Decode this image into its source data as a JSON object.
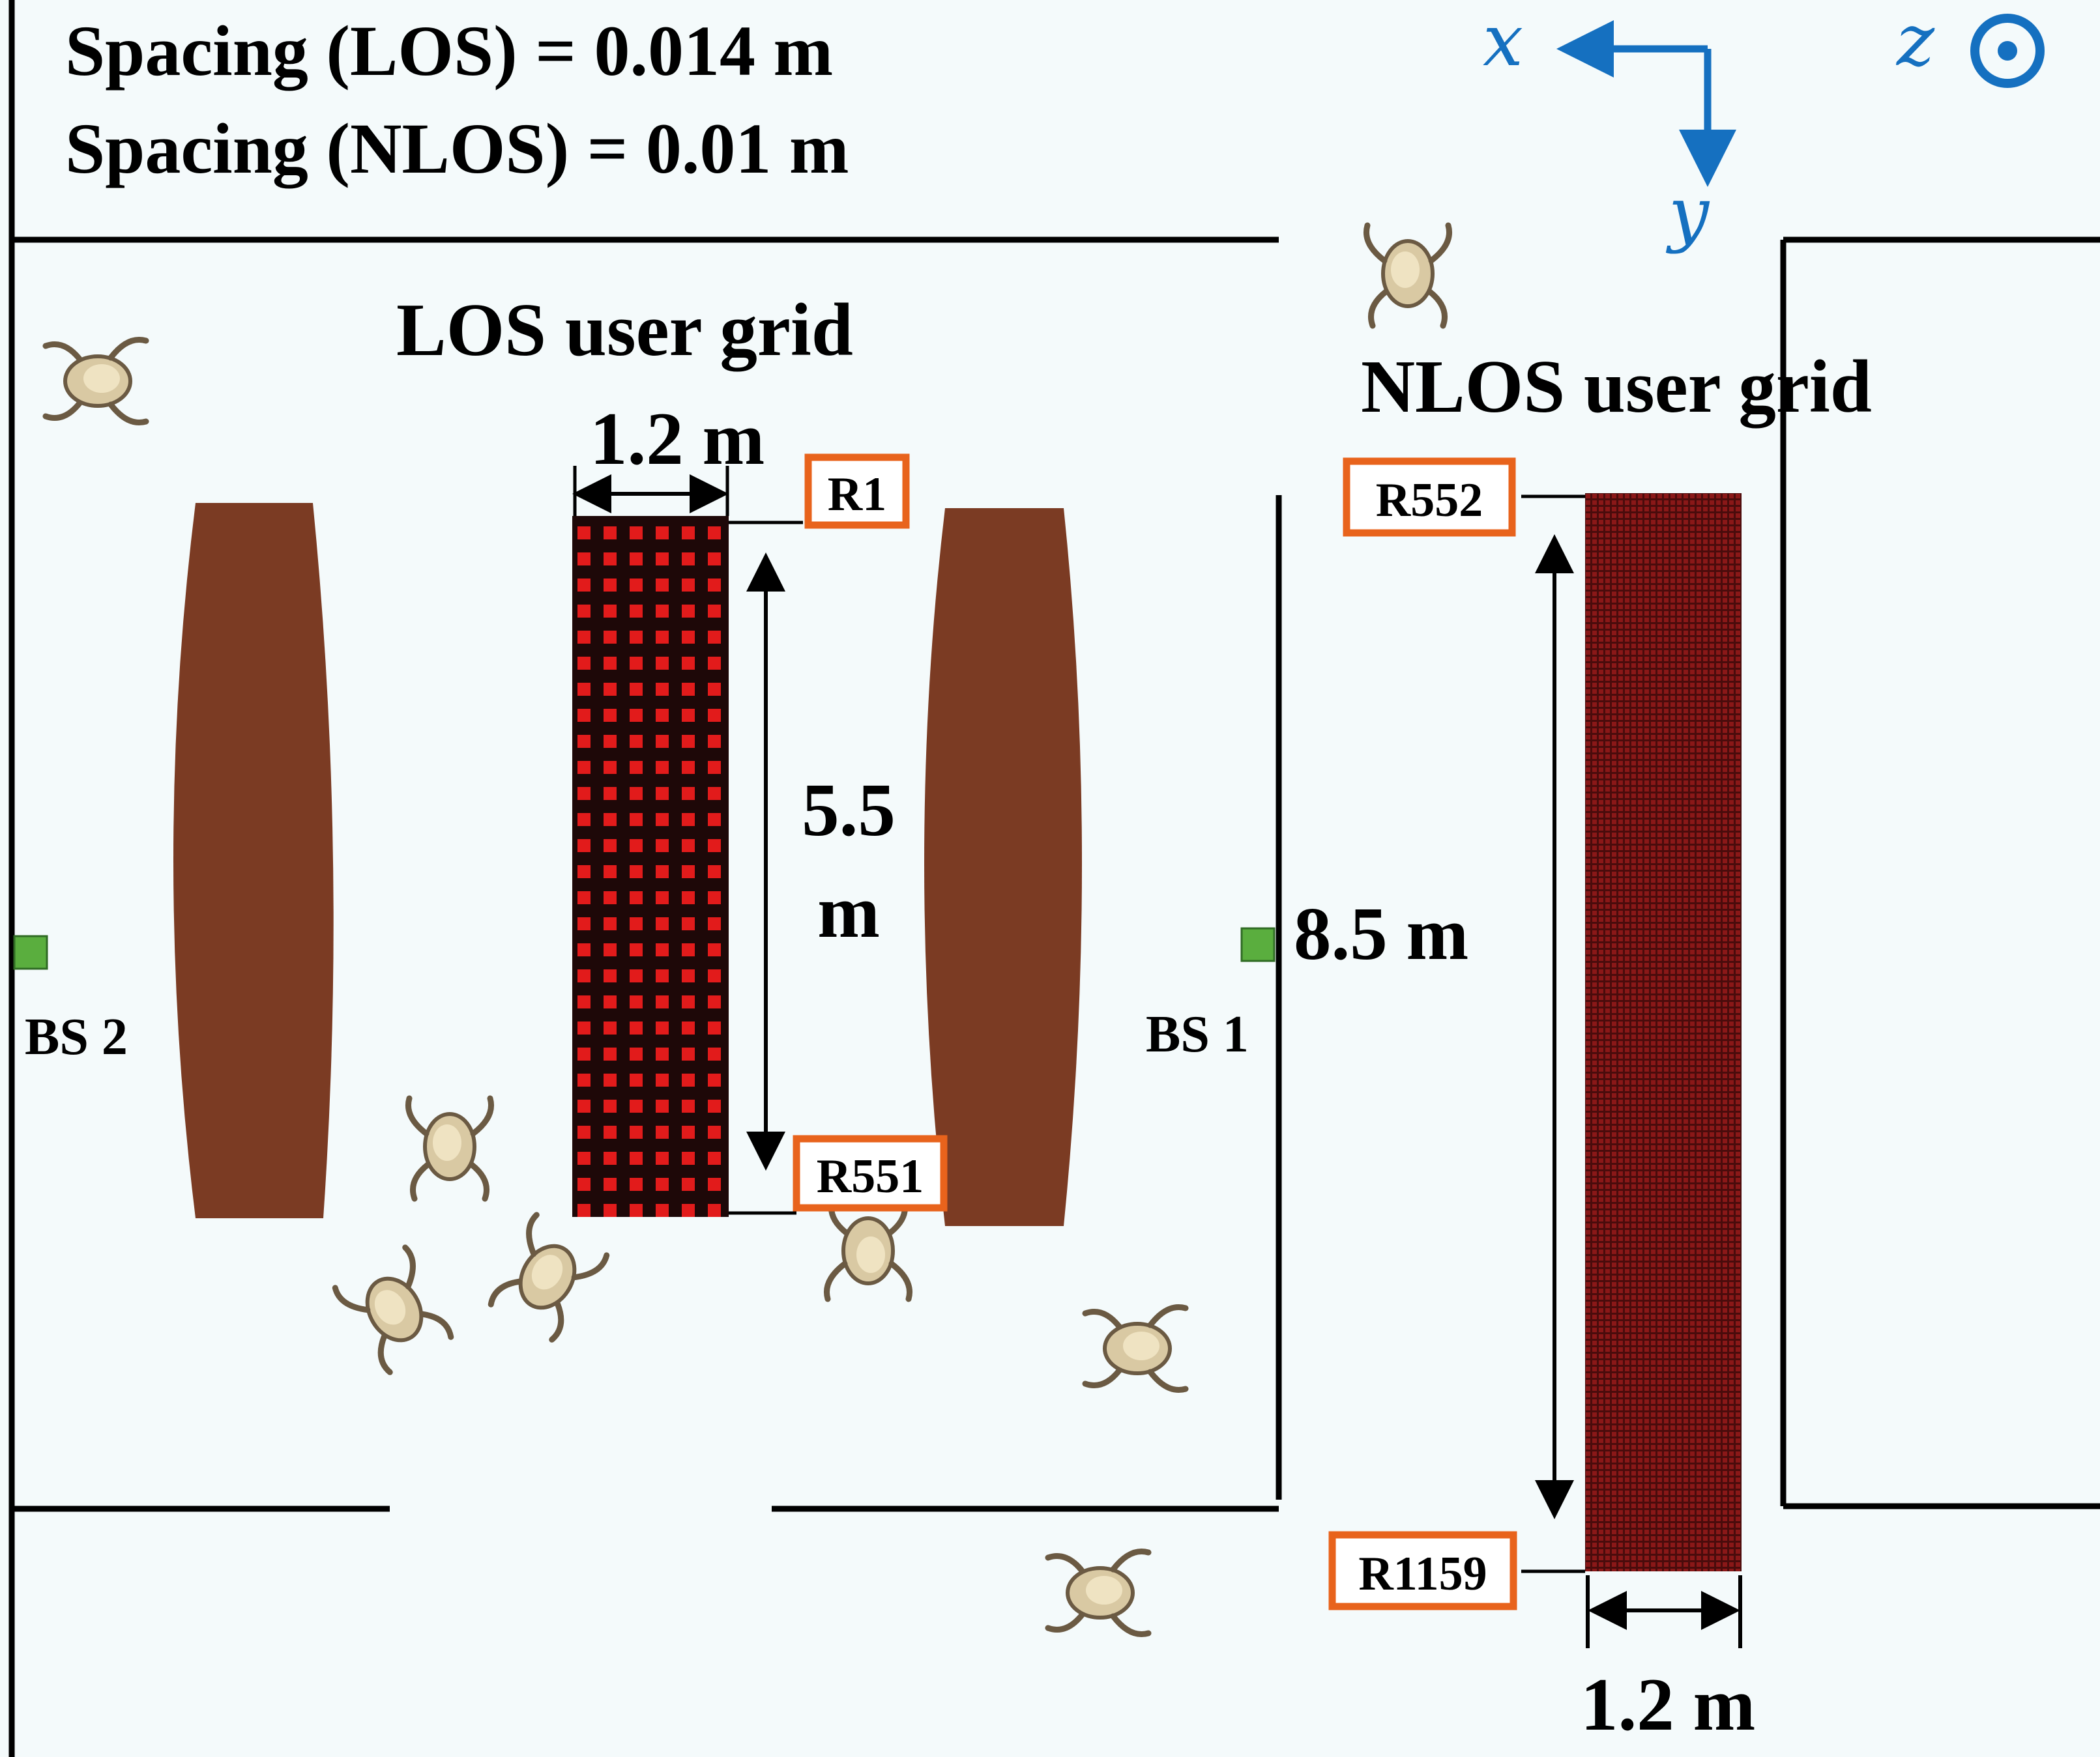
{
  "spacing": {
    "los": "Spacing (LOS) = 0.014 m",
    "nlos": "Spacing (NLOS) = 0.01 m"
  },
  "axes": {
    "x": "x",
    "y": "y",
    "z": "z"
  },
  "grids": {
    "los_title": "LOS user grid",
    "nlos_title": "NLOS user grid",
    "los_width": "1.2 m",
    "los_height_num": "5.5",
    "los_height_unit": "m",
    "nlos_height": "8.5 m",
    "nlos_width": "1.2 m"
  },
  "receivers": {
    "r1": "R1",
    "r551": "R551",
    "r552": "R552",
    "r1159": "R1159"
  },
  "base_stations": {
    "bs1": "BS 1",
    "bs2": "BS 2"
  },
  "colors": {
    "wall": "#000000",
    "table": "#7b3b23",
    "grid_cell": "#e21b1b",
    "grid_bg": "#1e0808",
    "nlos_grid": "#6e1414",
    "label_border": "#e8631c",
    "base_station": "#5aae3e",
    "axis": "#1570c0",
    "background": "#f4fafb",
    "person": "#d9c9a3"
  }
}
